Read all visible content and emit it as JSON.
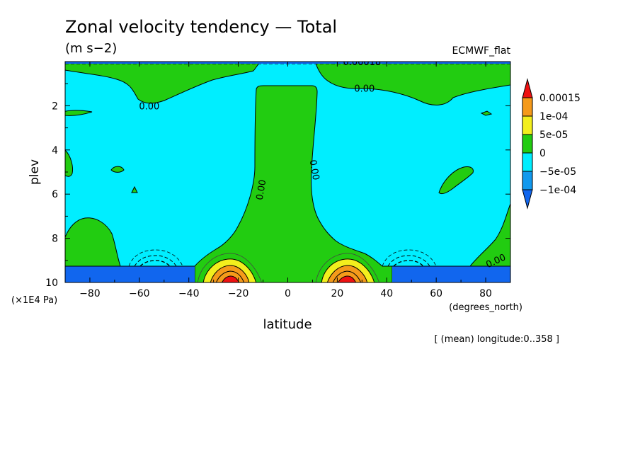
{
  "chart_data": {
    "type": "heatmap",
    "title": "Zonal velocity tendency — Total",
    "subtitle": "(m s−2)",
    "dataset_label": "ECMWF_flat",
    "xlabel": "latitude",
    "x_units": "(degrees_north)",
    "ylabel": "plev",
    "y_units": "(×1E4 Pa)",
    "note": "[ (mean) longitude:0..358 ]",
    "xlim": [
      -90,
      90
    ],
    "ylim": [
      0,
      10
    ],
    "y_inverted": true,
    "x_ticks": [
      -80,
      -60,
      -40,
      -20,
      0,
      20,
      40,
      60,
      80
    ],
    "y_ticks": [
      2,
      4,
      6,
      8,
      10
    ],
    "contour_labels": [
      {
        "text": "0.00",
        "x": -56,
        "y": 2.0,
        "angle": 0
      },
      {
        "text": "0.00",
        "x": 31,
        "y": 1.2,
        "angle": 0
      },
      {
        "text": "0.00",
        "x": -11,
        "y": 5.8,
        "angle": -80
      },
      {
        "text": "0.00",
        "x": 11,
        "y": 4.9,
        "angle": 80
      },
      {
        "text": "0.00",
        "x": 84,
        "y": 9.0,
        "angle": -25
      },
      {
        "text": "0.00018",
        "x": 30,
        "y": 0.0,
        "angle": 0
      }
    ],
    "colorbar": {
      "labels": [
        "0.00015",
        "1e-04",
        "5e-05",
        "0",
        "−5e-05",
        "−1e-04"
      ],
      "colors": [
        "#ee1111",
        "#f59a1a",
        "#f3ef1d",
        "#22cc11",
        "#00eeff",
        "#1199ee",
        "#1166ee"
      ]
    },
    "colors": {
      "bg": "#00eeff",
      "zero_pos": "#22cc11",
      "neg_strong": "#1166ee",
      "pos_yellow": "#f3ef1d",
      "pos_orange": "#f59a1a",
      "pos_red": "#ee1111"
    }
  }
}
